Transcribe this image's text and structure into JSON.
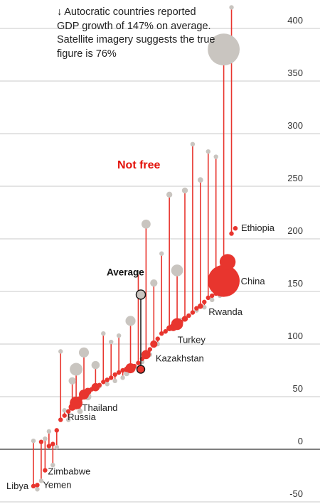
{
  "annotation": {
    "arrow": "↓",
    "text": "Autocratic countries reported GDP growth of 147% on average. Satellite imagery suggests the true figure is 76%"
  },
  "category_label": "Not free",
  "colors": {
    "reported": "#c9c5c0",
    "satellite": "#e8352e",
    "stem": "#e8352e",
    "average_stem": "#222222",
    "grid": "#b9b9b9",
    "zero_line": "#333333",
    "category": "#e3120b"
  },
  "chart_data": {
    "type": "dumbbell",
    "title": "",
    "xlabel": "",
    "ylabel": "",
    "ylim": [
      -50,
      420
    ],
    "yticks": [
      400,
      350,
      300,
      250,
      200,
      150,
      100,
      50,
      0,
      -50
    ],
    "ytick_labels": [
      "400",
      "350",
      "300",
      "250",
      "200",
      "150",
      "100",
      "50",
      "0",
      "-50"
    ],
    "series": [
      {
        "name": "",
        "values": [
          8,
          -38,
          -30,
          10,
          17,
          -15,
          2,
          93,
          37,
          28,
          65,
          76,
          36,
          92,
          50,
          57,
          80,
          60,
          110,
          62,
          102,
          65,
          108,
          68,
          72,
          122,
          78,
          168,
          83,
          214,
          90,
          158,
          100,
          186,
          112,
          242,
          116,
          170,
          123,
          246,
          127,
          290,
          132,
          256,
          135,
          283,
          142,
          278,
          146,
          380,
          178,
          420,
          210
        ]
      },
      {
        "name": "",
        "values": [
          -35,
          -34,
          7,
          -20,
          3,
          5,
          18,
          28,
          32,
          36,
          40,
          44,
          48,
          52,
          55,
          57,
          59,
          61,
          64,
          66,
          68,
          71,
          73,
          75,
          76,
          77,
          79,
          82,
          86,
          90,
          95,
          100,
          105,
          110,
          112,
          115,
          116,
          119,
          121,
          124,
          127,
          130,
          134,
          136,
          140,
          144,
          146,
          148,
          152,
          160,
          178,
          205,
          210
        ]
      }
    ],
    "size": [
      1,
      1,
      1,
      1,
      1,
      1,
      1,
      1,
      1,
      1,
      1.6,
      2.8,
      1.2,
      2.2,
      1.6,
      1,
      1.8,
      1,
      1,
      1,
      1,
      1,
      1,
      1,
      1.2,
      2.2,
      1,
      1,
      1,
      2,
      1,
      1.6,
      1,
      1,
      1,
      1.3,
      1.7,
      2.6,
      1,
      1.3,
      1,
      1,
      1,
      1.2,
      1,
      1,
      1,
      1,
      1,
      7,
      3.5,
      1,
      1
    ],
    "average": {
      "label": "Average",
      "reported": 147,
      "satellite": 76
    },
    "labeled_countries": [
      {
        "name": "Libya",
        "index": 0
      },
      {
        "name": "Yemen",
        "index": 1
      },
      {
        "name": "Zimbabwe",
        "index": 3
      },
      {
        "name": "Russia",
        "index": 11
      },
      {
        "name": "Thailand",
        "index": 12
      },
      {
        "name": "Kazakhstan",
        "index": 30
      },
      {
        "name": "Turkey",
        "index": 36
      },
      {
        "name": "Rwanda",
        "index": 44
      },
      {
        "name": "China",
        "index": 49
      },
      {
        "name": "Ethiopia",
        "index": 52
      }
    ],
    "grid": true
  }
}
